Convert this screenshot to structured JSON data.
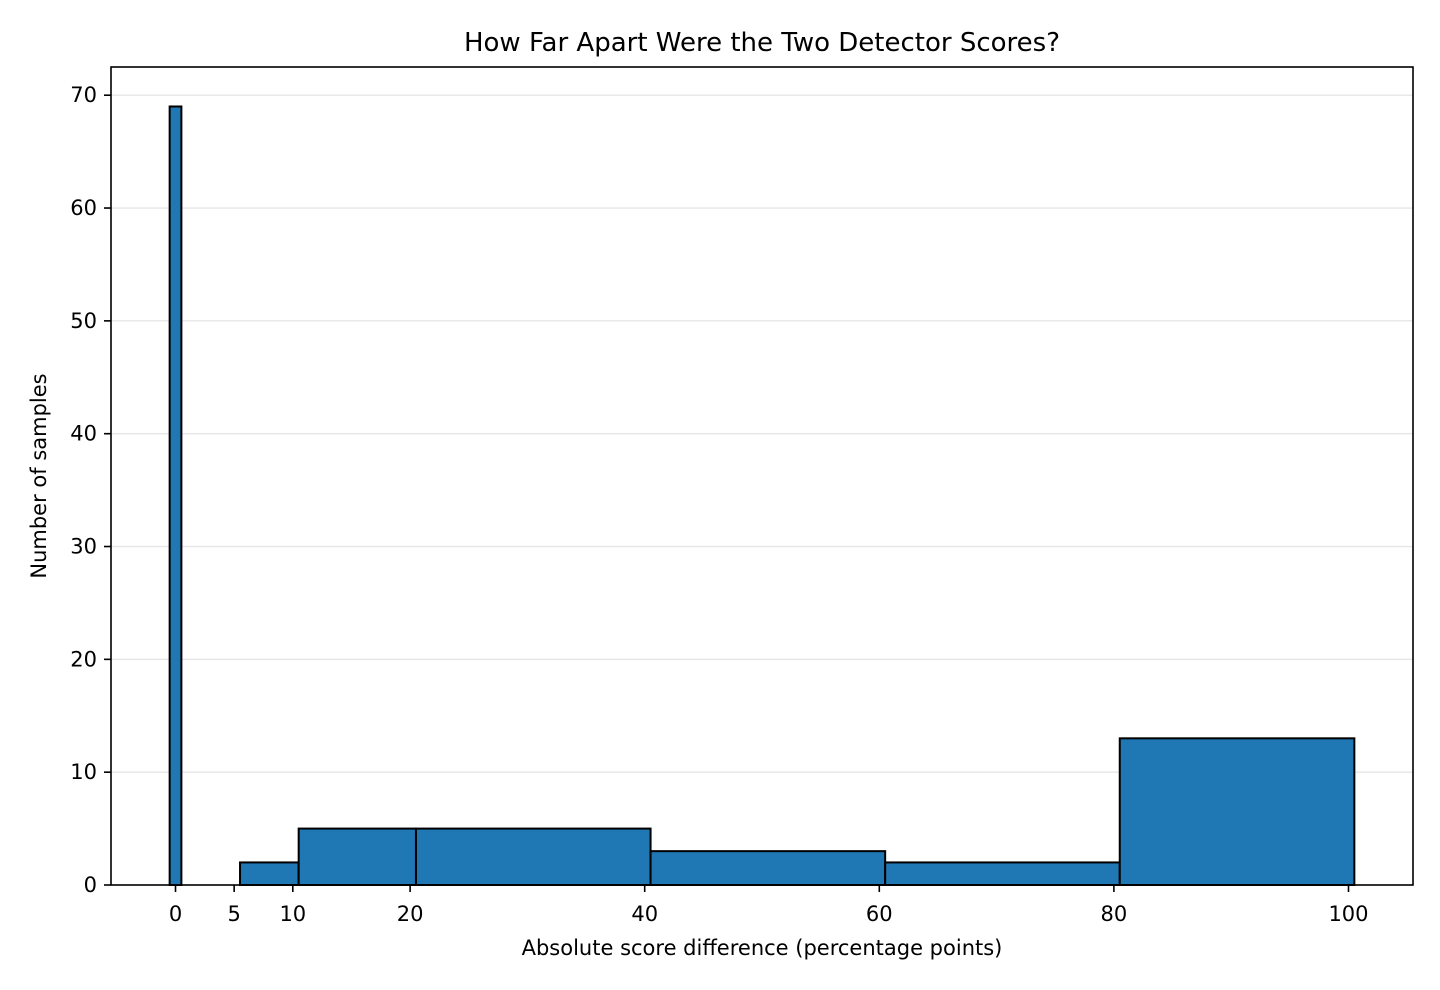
{
  "chart_data": {
    "type": "bar",
    "title": "How Far Apart Were the Two Detector Scores?",
    "xlabel": "Absolute score difference (percentage points)",
    "ylabel": "Number of samples",
    "bins": [
      {
        "start": -0.5,
        "end": 0.5,
        "count": 69
      },
      {
        "start": 5.5,
        "end": 10.5,
        "count": 2
      },
      {
        "start": 10.5,
        "end": 20.5,
        "count": 5
      },
      {
        "start": 20.5,
        "end": 40.5,
        "count": 5
      },
      {
        "start": 40.5,
        "end": 60.5,
        "count": 3
      },
      {
        "start": 60.5,
        "end": 80.5,
        "count": 2
      },
      {
        "start": 80.5,
        "end": 100.5,
        "count": 13
      }
    ],
    "xticks": [
      0,
      5,
      10,
      20,
      40,
      60,
      80,
      100
    ],
    "yticks": [
      0,
      10,
      20,
      30,
      40,
      50,
      60,
      70
    ],
    "xlim": [
      -5.5,
      105.5
    ],
    "ylim": [
      0,
      72.5
    ],
    "grid": "horizontal",
    "legend": "none",
    "bar_color": "#1f77b4",
    "edge_color": "#000000"
  }
}
